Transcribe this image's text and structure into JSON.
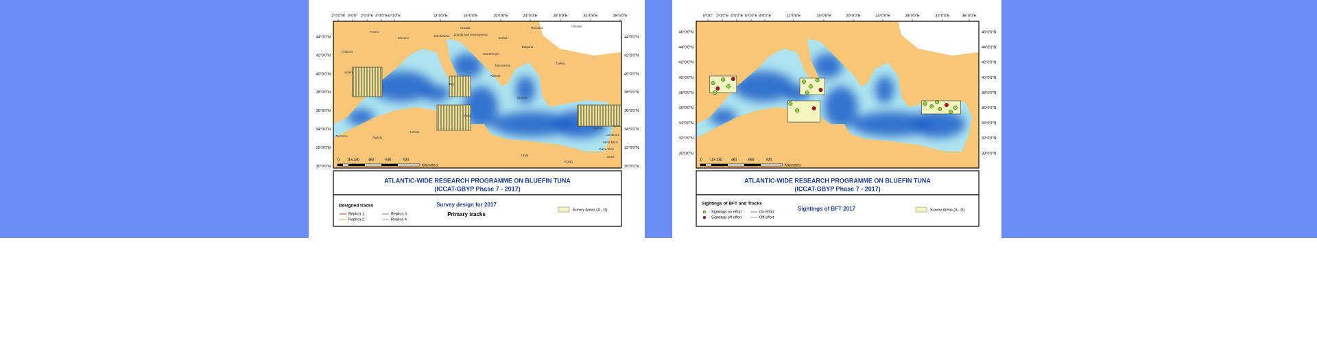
{
  "panels": [
    {
      "longitude_labels": [
        "2°0'0\"W",
        "0°0'0\"",
        "2°0'0\"E",
        "4°0'0\"E",
        "6°0'0\"E",
        "12°0'0\"E",
        "16°0'0\"E",
        "20°0'0\"E",
        "24°0'0\"E",
        "28°0'0\"E",
        "33°0'0\"E",
        "36°0'0\"E"
      ],
      "latitude_labels": [
        "44°0'0\"N",
        "42°0'0\"N",
        "40°0'0\"N",
        "38°0'0\"N",
        "36°0'0\"N",
        "34°0'0\"N",
        "32°0'0\"N",
        "30°0'0\"N"
      ],
      "place_labels": [
        "France",
        "Monaco",
        "San Marino",
        "Croatia",
        "Bosnia and Herzegovina",
        "Serbia",
        "Romania",
        "Ukraine",
        "Andorra",
        "Montenegro",
        "Bulgaria",
        "Spain",
        "Italy",
        "Macedonia",
        "Albania",
        "Turkey",
        "Greece",
        "Malta",
        "Tunisia",
        "Algeria",
        "Morocco",
        "Libya",
        "Egypt",
        "Cyprus",
        "Lebanon",
        "Syria",
        "West Bank",
        "Gaza Strip",
        "Israel"
      ],
      "scale_labels": [
        "0",
        "115 230",
        "460",
        "690",
        "920",
        "Kilometers"
      ],
      "title": [
        "ATLANTIC-WIDE RESEARCH PROGRAMME ON BLUEFIN TUNA",
        "(ICCAT-GBYP Phase 7 - 2017)"
      ],
      "legend": {
        "heading": "Designed tracks",
        "items": [
          "Replica 1",
          "Replica 2",
          "Replica 3",
          "Replica 4"
        ],
        "center_title": "Survey design for 2017",
        "center_subtitle": "Primary tracks",
        "area_label": "Survey Areas (A - G)"
      }
    },
    {
      "longitude_labels": [
        "0°0'0\"",
        "2°0'0\"E",
        "4°0'0\"E",
        "6°0'0\"E",
        "8°0'0\"E",
        "12°0'0\"E",
        "16°0'0\"E",
        "20°0'0\"E",
        "24°0'0\"E",
        "28°0'0\"E",
        "32°0'0\"E",
        "36°0'0\"E"
      ],
      "latitude_labels": [
        "46°0'0\"N",
        "44°0'0\"N",
        "42°0'0\"N",
        "40°0'0\"N",
        "38°0'0\"N",
        "36°0'0\"N",
        "34°0'0\"N",
        "32°0'0\"N",
        "30°0'0\"N"
      ],
      "place_labels": [],
      "scale_labels": [
        "0",
        "115 230",
        "460",
        "690",
        "920",
        "Kilometers"
      ],
      "title": [
        "ATLANTIC-WIDE RESEARCH PROGRAMME ON BLUEFIN TUNA",
        "(ICCAT-GBYP Phase 7 - 2017)"
      ],
      "legend": {
        "heading": "Sightings of BFT and Tracks",
        "items": [
          "Sightings on effort",
          "Sightings off effort",
          "On effort",
          "Off effort"
        ],
        "center_title": "Sightings of BFT 2017",
        "area_label": "Survey Areas (A - G)"
      }
    }
  ]
}
